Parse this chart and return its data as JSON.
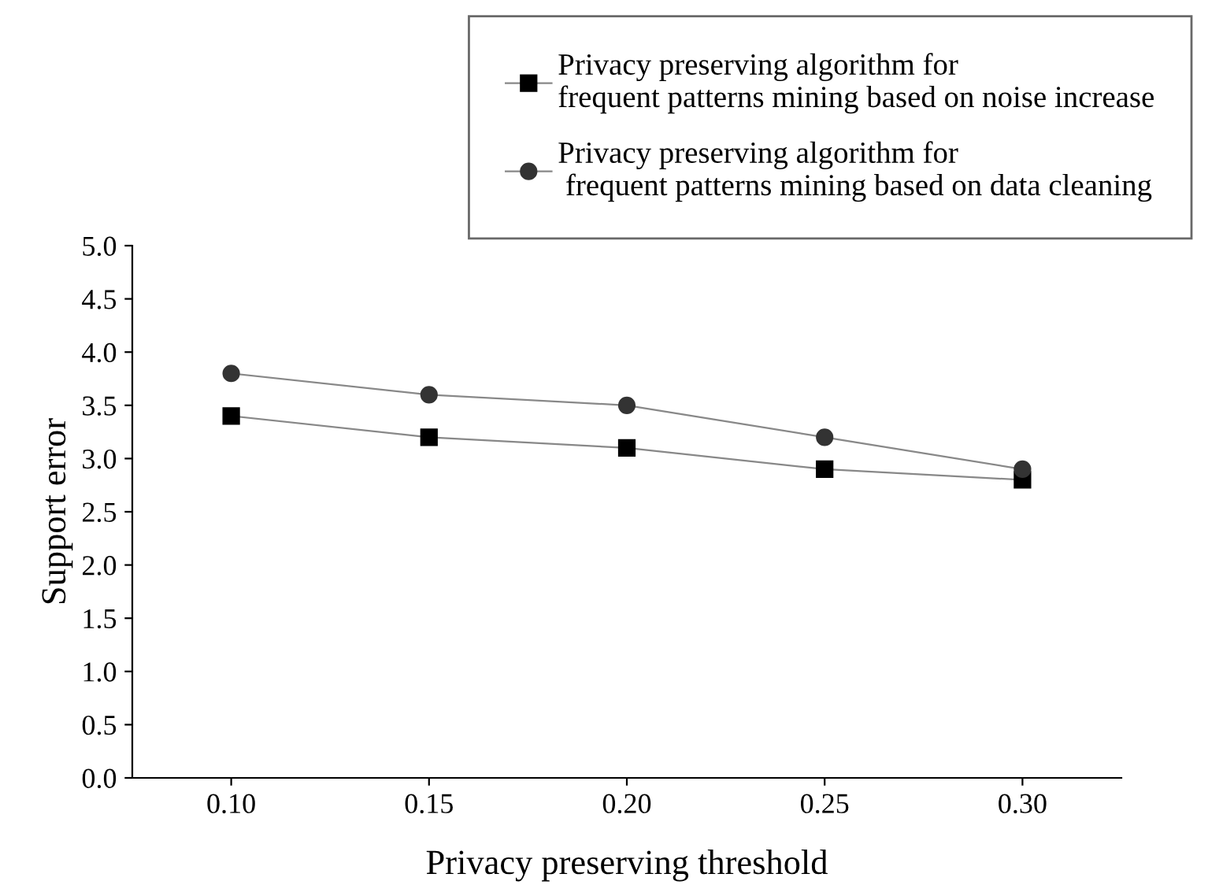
{
  "chart_data": {
    "type": "line",
    "xlabel": "Privacy preserving threshold",
    "ylabel": "Support error",
    "x": [
      0.1,
      0.15,
      0.2,
      0.25,
      0.3
    ],
    "series": [
      {
        "name": "Privacy preserving algorithm for\nfrequent patterns mining based on noise increase",
        "color": "#000000",
        "marker": "square",
        "values": [
          3.4,
          3.2,
          3.1,
          2.9,
          2.8
        ]
      },
      {
        "name": "Privacy preserving algorithm for\n frequent patterns mining based on data cleaning",
        "color": "#333333",
        "marker": "circle",
        "values": [
          3.8,
          3.6,
          3.5,
          3.2,
          2.9
        ]
      }
    ],
    "xlim": [
      0.075,
      0.325
    ],
    "xticks": [
      {
        "value": 0.1,
        "label": "0.10"
      },
      {
        "value": 0.15,
        "label": "0.15"
      },
      {
        "value": 0.2,
        "label": "0.20"
      },
      {
        "value": 0.25,
        "label": "0.25"
      },
      {
        "value": 0.3,
        "label": "0.30"
      }
    ],
    "ylim": [
      0,
      5.0
    ],
    "yticks": [
      {
        "value": 0,
        "label": "0.0"
      },
      {
        "value": 0.5,
        "label": "0.5"
      },
      {
        "value": 1.0,
        "label": "1.0"
      },
      {
        "value": 1.5,
        "label": "1.5"
      },
      {
        "value": 2.0,
        "label": "2.0"
      },
      {
        "value": 2.5,
        "label": "2.5"
      },
      {
        "value": 3.0,
        "label": "3.0"
      },
      {
        "value": 3.5,
        "label": "3.5"
      },
      {
        "value": 4.0,
        "label": "4.0"
      },
      {
        "value": 4.5,
        "label": "4.5"
      },
      {
        "value": 5.0,
        "label": "5.0"
      }
    ],
    "legend": "top right"
  }
}
